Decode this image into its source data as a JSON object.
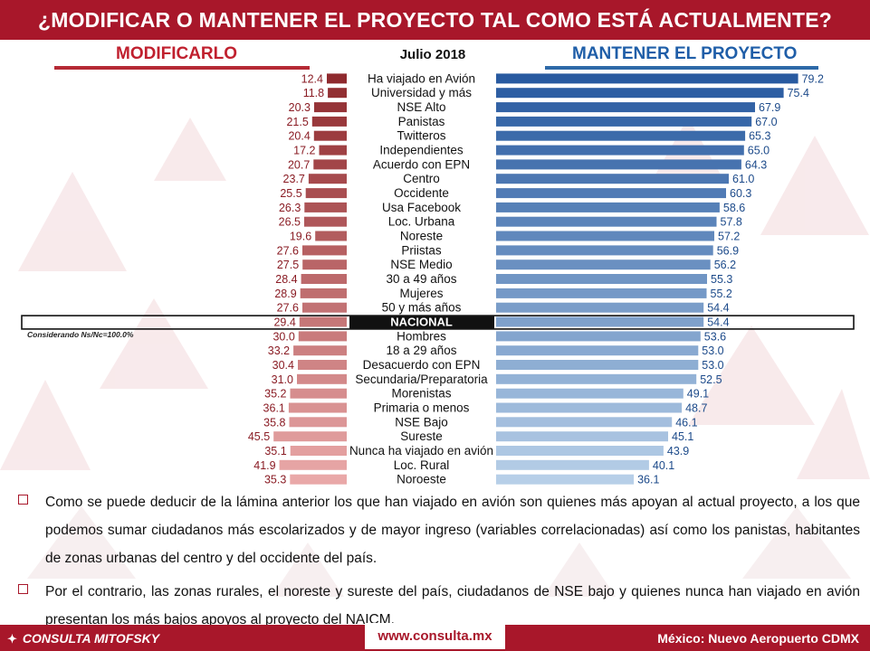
{
  "header": {
    "title": "¿Modificar o mantener el proyecto tal como está actualmente?"
  },
  "columns": {
    "left_title": "Modificarlo",
    "date": "Julio 2018",
    "right_title": "Mantener el Proyecto"
  },
  "note": "Considerando Ns/Nc=100.0%",
  "colors": {
    "accent_red": "#a8172a",
    "bar_red_dark": "#8f2a2e",
    "bar_red_light": "#e9a8a8",
    "bar_blue_dark": "#285aa0",
    "bar_blue_light": "#b7cfe8"
  },
  "chart_data": {
    "type": "bar",
    "categories": [
      "Ha viajado en Avión",
      "Universidad y más",
      "NSE Alto",
      "Panistas",
      "Twitteros",
      "Independientes",
      "Acuerdo con EPN",
      "Centro",
      "Occidente",
      "Usa Facebook",
      "Loc. Urbana",
      "Noreste",
      "Priistas",
      "NSE Medio",
      "30 a 49 años",
      "Mujeres",
      "50 y más años",
      "NACIONAL",
      "Hombres",
      "18 a 29 años",
      "Desacuerdo con EPN",
      "Secundaria/Preparatoria",
      "Morenistas",
      "Primaria o menos",
      "NSE Bajo",
      "Sureste",
      "Nunca ha viajado en avión",
      "Loc. Rural",
      "Noroeste"
    ],
    "series": [
      {
        "name": "Modificarlo",
        "values": [
          12.4,
          11.8,
          20.3,
          21.5,
          20.4,
          17.2,
          20.7,
          23.7,
          25.5,
          26.3,
          26.5,
          19.6,
          27.6,
          27.5,
          28.4,
          28.9,
          27.6,
          29.4,
          30.0,
          33.2,
          30.4,
          31.0,
          35.2,
          36.1,
          35.8,
          45.5,
          35.1,
          41.9,
          35.3
        ]
      },
      {
        "name": "Mantener el Proyecto",
        "values": [
          79.2,
          75.4,
          67.9,
          67.0,
          65.3,
          65.0,
          64.3,
          61.0,
          60.3,
          58.6,
          57.8,
          57.2,
          56.9,
          56.2,
          55.3,
          55.2,
          54.4,
          54.4,
          53.6,
          53.0,
          53.0,
          52.5,
          49.1,
          48.7,
          46.1,
          45.1,
          43.9,
          40.1,
          36.1
        ]
      }
    ],
    "highlight_category": "NACIONAL",
    "value_format": "0.0"
  },
  "bullets": [
    "Como se puede deducir de la lámina anterior los que han viajado en avión son quienes más apoyan al actual proyecto, a los que podemos sumar ciudadanos más escolarizados y de mayor ingreso (variables correlacionadas) así como los panistas, habitantes de zonas urbanas del centro y del occidente del país.",
    "Por el contrario, las zonas rurales, el noreste y sureste del país, ciudadanos de NSE bajo y quienes nunca han viajado en avión presentan los más bajos apoyos al proyecto del NAICM."
  ],
  "footer": {
    "logo_text": "CONSULTA MITOFSKY",
    "url": "www.consulta.mx",
    "right_text": "México: Nuevo Aeropuerto CDMX"
  }
}
